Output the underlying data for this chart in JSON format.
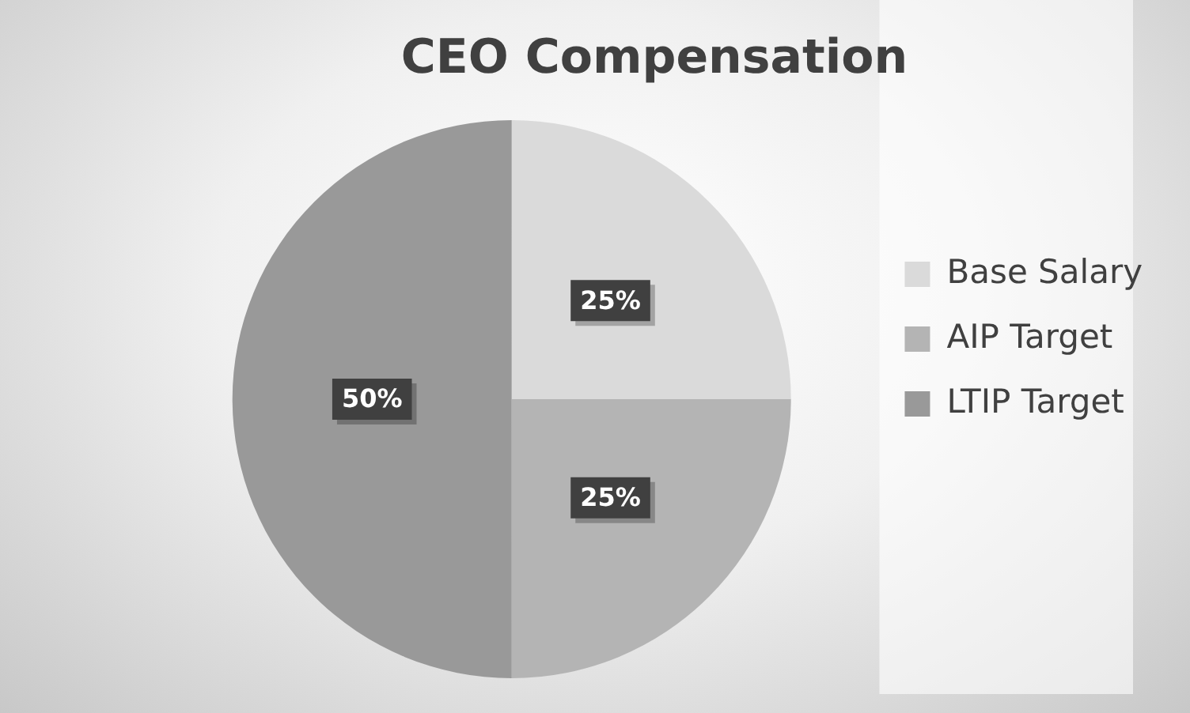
{
  "chart_data": {
    "type": "pie",
    "title": "CEO Compensation",
    "categories": [
      "Base Salary",
      "AIP Target",
      "LTIP Target"
    ],
    "values": [
      25,
      25,
      50
    ],
    "value_labels": [
      "25%",
      "25%",
      "50%"
    ],
    "colors": [
      "#dadada",
      "#b4b4b4",
      "#999999"
    ],
    "legend": "right"
  }
}
